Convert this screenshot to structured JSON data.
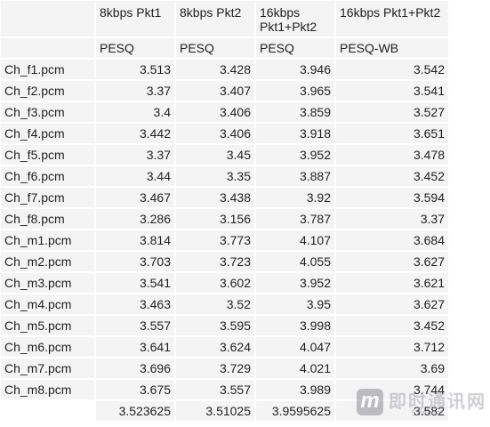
{
  "columns": [
    "",
    "8kbps Pkt1",
    "8kbps Pkt2",
    "16kbps Pkt1+Pkt2",
    "16kbps Pkt1+Pkt2"
  ],
  "metrics": [
    "",
    "PESQ",
    "PESQ",
    "PESQ",
    "PESQ-WB"
  ],
  "rows": [
    {
      "name": "Ch_f1.pcm",
      "v": [
        "3.513",
        "3.428",
        "3.946",
        "3.542"
      ]
    },
    {
      "name": "Ch_f2.pcm",
      "v": [
        "3.37",
        "3.407",
        "3.965",
        "3.541"
      ]
    },
    {
      "name": "Ch_f3.pcm",
      "v": [
        "3.4",
        "3.406",
        "3.859",
        "3.527"
      ]
    },
    {
      "name": "Ch_f4.pcm",
      "v": [
        "3.442",
        "3.406",
        "3.918",
        "3.651"
      ]
    },
    {
      "name": "Ch_f5.pcm",
      "v": [
        "3.37",
        "3.45",
        "3.952",
        "3.478"
      ]
    },
    {
      "name": "Ch_f6.pcm",
      "v": [
        "3.44",
        "3.35",
        "3.887",
        "3.452"
      ]
    },
    {
      "name": "Ch_f7.pcm",
      "v": [
        "3.467",
        "3.438",
        "3.92",
        "3.594"
      ]
    },
    {
      "name": "Ch_f8.pcm",
      "v": [
        "3.286",
        "3.156",
        "3.787",
        "3.37"
      ]
    },
    {
      "name": "Ch_m1.pcm",
      "v": [
        "3.814",
        "3.773",
        "4.107",
        "3.684"
      ]
    },
    {
      "name": "Ch_m2.pcm",
      "v": [
        "3.703",
        "3.723",
        "4.055",
        "3.627"
      ]
    },
    {
      "name": "Ch_m3.pcm",
      "v": [
        "3.541",
        "3.602",
        "3.952",
        "3.621"
      ]
    },
    {
      "name": "Ch_m4.pcm",
      "v": [
        "3.463",
        "3.52",
        "3.95",
        "3.627"
      ]
    },
    {
      "name": "Ch_m5.pcm",
      "v": [
        "3.557",
        "3.595",
        "3.998",
        "3.452"
      ]
    },
    {
      "name": "Ch_m6.pcm",
      "v": [
        "3.641",
        "3.624",
        "4.047",
        "3.712"
      ]
    },
    {
      "name": "Ch_m7.pcm",
      "v": [
        "3.696",
        "3.729",
        "4.021",
        "3.69"
      ]
    },
    {
      "name": "Ch_m8.pcm",
      "v": [
        "3.675",
        "3.557",
        "3.989",
        "3.744"
      ]
    }
  ],
  "totals": [
    "",
    "3.523625",
    "3.51025",
    "3.9595625",
    "3.582"
  ],
  "watermark": {
    "logo": "m",
    "text": "即时通讯网",
    "url": "52im.net"
  },
  "colors": {
    "cell_bg": "#f4f4f4",
    "text": "#1f1f1f"
  }
}
